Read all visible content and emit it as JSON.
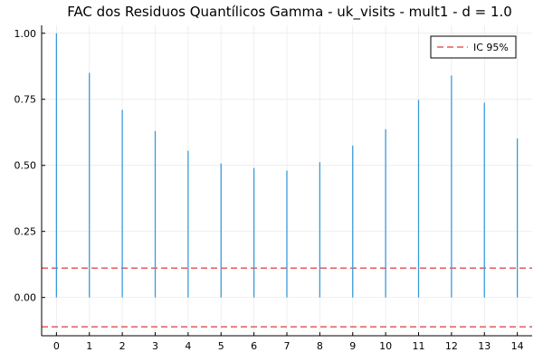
{
  "chart_data": {
    "type": "bar",
    "title": "FAC dos Residuos Quantílicos Gamma - uk_visits - mult1 - d = 1.0",
    "xlabel": "",
    "ylabel": "",
    "x": [
      0,
      1,
      2,
      3,
      4,
      5,
      6,
      7,
      8,
      9,
      10,
      11,
      12,
      13,
      14
    ],
    "values": [
      1.0,
      0.85,
      0.71,
      0.63,
      0.555,
      0.507,
      0.49,
      0.48,
      0.512,
      0.575,
      0.637,
      0.748,
      0.84,
      0.737,
      0.602
    ],
    "xlim": [
      -0.45,
      14.45
    ],
    "ylim": [
      -0.145,
      1.03
    ],
    "xticks": [
      "0",
      "1",
      "2",
      "3",
      "4",
      "5",
      "6",
      "7",
      "8",
      "9",
      "10",
      "11",
      "12",
      "13",
      "14"
    ],
    "yticks": [
      0.0,
      0.25,
      0.5,
      0.75,
      1.0
    ],
    "ytick_labels": [
      "0.00",
      "0.25",
      "0.50",
      "0.75",
      "1.00"
    ],
    "confidence_band": [
      -0.111,
      0.111
    ],
    "legend": {
      "label": "IC 95%",
      "position": "top-right"
    },
    "grid": true,
    "colors": {
      "stem": "#3a9ad9",
      "ci": "#e55b5b",
      "grid": "#e8e8e8",
      "axis": "#000000"
    }
  }
}
